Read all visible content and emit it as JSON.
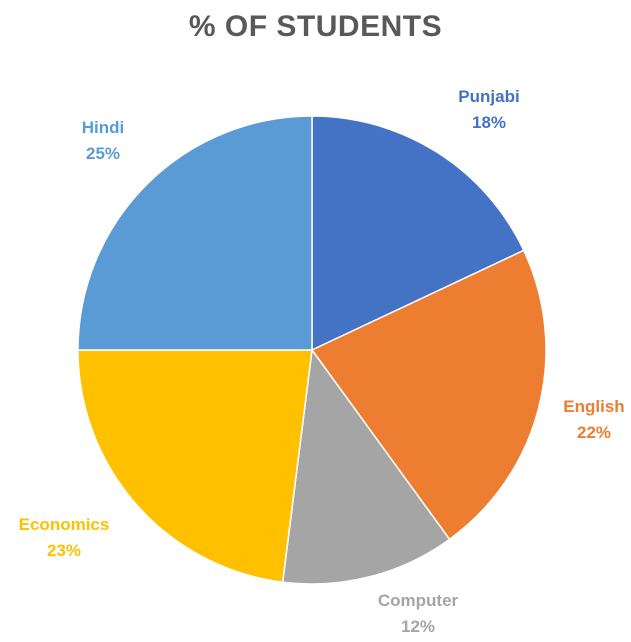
{
  "chart_data": {
    "type": "pie",
    "title": "% OF STUDENTS",
    "categories": [
      "Punjabi",
      "English",
      "Computer",
      "Economics",
      "Hindi"
    ],
    "values": [
      18,
      22,
      12,
      23,
      25
    ],
    "value_labels": [
      "18%",
      "22%",
      "12%",
      "23%",
      "25%"
    ],
    "colors": [
      "#4472C4",
      "#ED7D31",
      "#A5A5A5",
      "#FFC000",
      "#5B9BD5"
    ],
    "start_angle": "12 o'clock",
    "direction": "clockwise",
    "legend": "none",
    "data_labels": "outside"
  }
}
